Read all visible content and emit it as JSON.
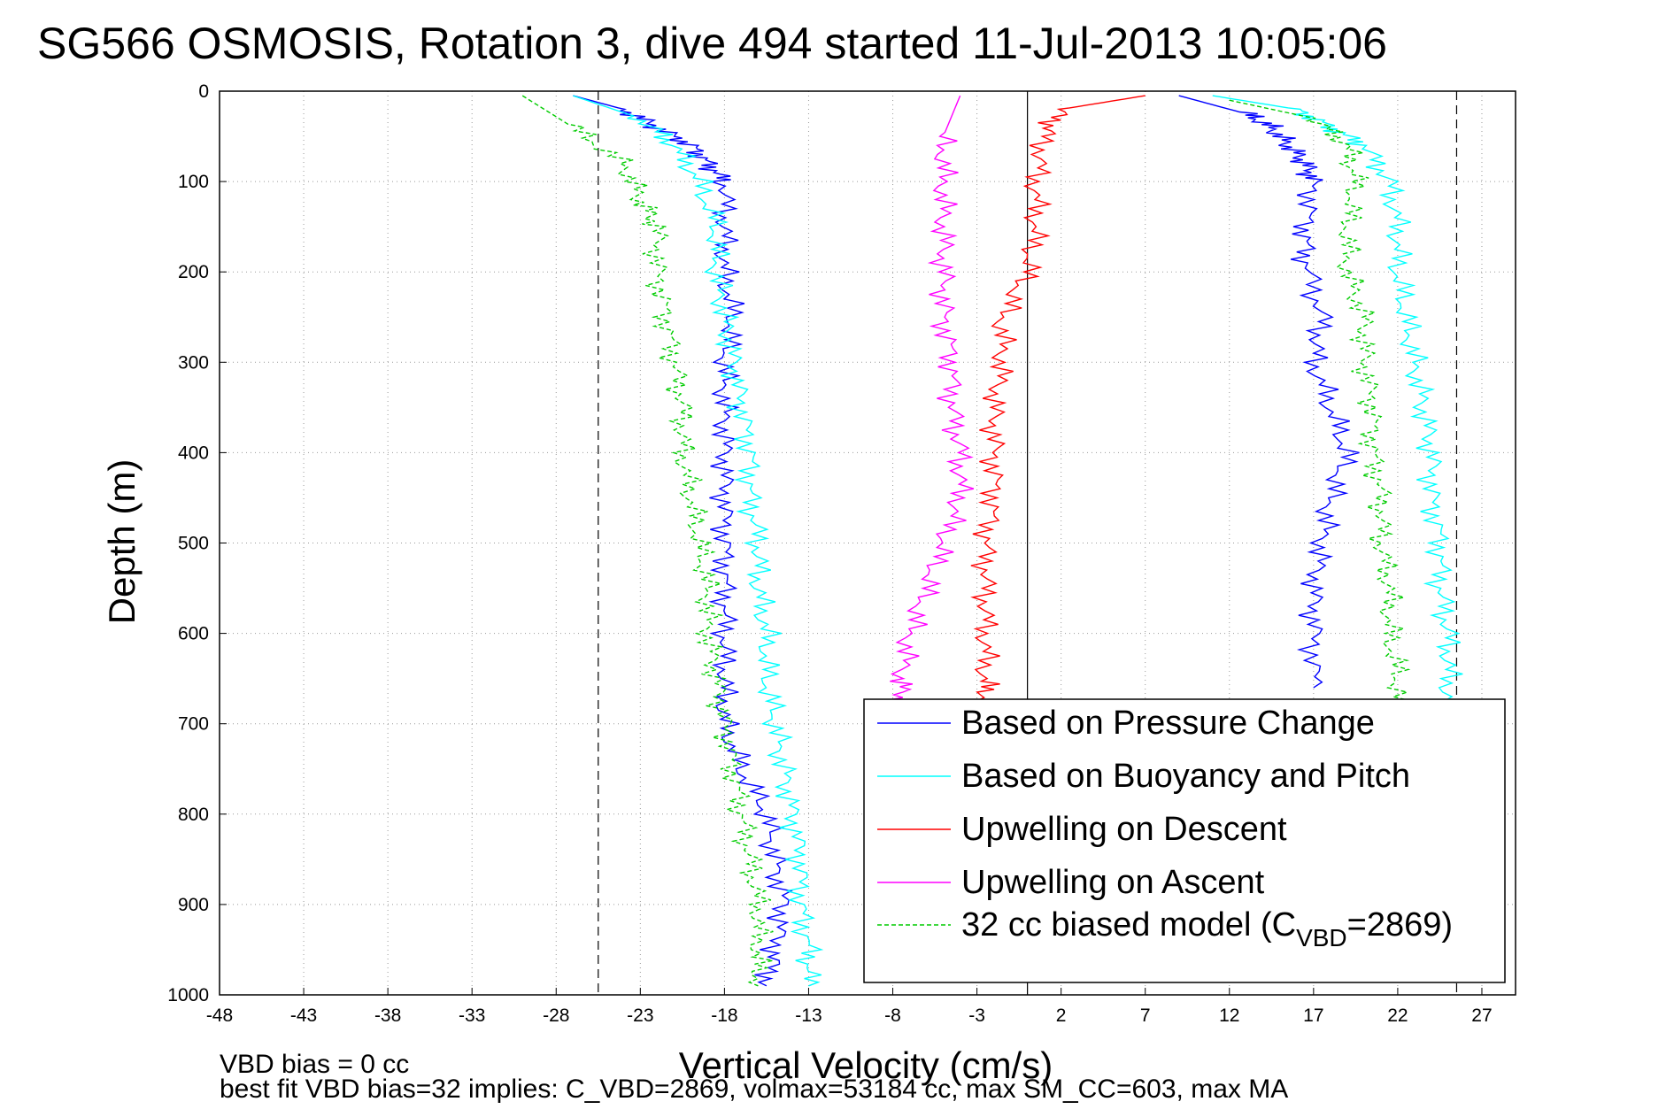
{
  "chart_data": {
    "type": "line",
    "title": "SG566 OSMOSIS, Rotation 3, dive 494 started 11-Jul-2013 10:05:06",
    "xlabel": "Vertical Velocity (cm/s)",
    "ylabel": "Depth (m)",
    "xlim": [
      -48,
      29
    ],
    "ylim": [
      1000,
      0
    ],
    "y_reversed": true,
    "grid": true,
    "x_ticks": [
      -48,
      -43,
      -38,
      -33,
      -28,
      -23,
      -18,
      -13,
      -8,
      -3,
      2,
      7,
      12,
      17,
      22,
      27
    ],
    "y_ticks": [
      0,
      100,
      200,
      300,
      400,
      500,
      600,
      700,
      800,
      900,
      1000
    ],
    "reference_lines": {
      "zero_velocity": 0,
      "descent_target": -25.5,
      "ascent_target": 25.5
    },
    "legend_position": "bottom-right",
    "series": [
      {
        "name": "Based on Pressure Change",
        "color": "#0000ff",
        "style": "solid",
        "descent": [
          [
            -27,
            5
          ],
          [
            -24,
            20
          ],
          [
            -22,
            40
          ],
          [
            -20,
            60
          ],
          [
            -19,
            80
          ],
          [
            -18,
            100
          ],
          [
            -18,
            150
          ],
          [
            -18,
            200
          ],
          [
            -17.5,
            250
          ],
          [
            -18,
            300
          ],
          [
            -18,
            350
          ],
          [
            -18,
            400
          ],
          [
            -18,
            450
          ],
          [
            -18,
            500
          ],
          [
            -18,
            550
          ],
          [
            -18,
            600
          ],
          [
            -18,
            650
          ],
          [
            -18,
            700
          ],
          [
            -17,
            750
          ],
          [
            -15.5,
            800
          ],
          [
            -15,
            850
          ],
          [
            -14.5,
            900
          ],
          [
            -15,
            950
          ],
          [
            -15.5,
            990
          ]
        ],
        "ascent": [
          [
            9,
            5
          ],
          [
            13,
            25
          ],
          [
            14.5,
            40
          ],
          [
            15.5,
            60
          ],
          [
            16.5,
            80
          ],
          [
            17,
            100
          ],
          [
            16.5,
            150
          ],
          [
            16.5,
            190
          ],
          [
            17.5,
            250
          ],
          [
            17,
            300
          ],
          [
            18,
            350
          ],
          [
            19,
            400
          ],
          [
            18,
            450
          ],
          [
            17.5,
            500
          ],
          [
            17,
            550
          ],
          [
            17,
            600
          ],
          [
            17,
            660
          ]
        ]
      },
      {
        "name": "Based on Buoyancy and Pitch",
        "color": "#00ffff",
        "style": "solid",
        "descent": [
          [
            -27,
            5
          ],
          [
            -23,
            30
          ],
          [
            -21,
            60
          ],
          [
            -19.5,
            100
          ],
          [
            -18.5,
            150
          ],
          [
            -18.5,
            200
          ],
          [
            -18,
            250
          ],
          [
            -17.5,
            300
          ],
          [
            -17,
            350
          ],
          [
            -16.5,
            400
          ],
          [
            -16.5,
            450
          ],
          [
            -16,
            500
          ],
          [
            -16,
            550
          ],
          [
            -15.5,
            600
          ],
          [
            -15.5,
            650
          ],
          [
            -15,
            700
          ],
          [
            -14.5,
            750
          ],
          [
            -14,
            800
          ],
          [
            -13.5,
            850
          ],
          [
            -13.5,
            900
          ],
          [
            -13,
            950
          ],
          [
            -13,
            990
          ]
        ],
        "ascent": [
          [
            11,
            5
          ],
          [
            16,
            20
          ],
          [
            18,
            40
          ],
          [
            20,
            60
          ],
          [
            21.5,
            100
          ],
          [
            22,
            150
          ],
          [
            22,
            200
          ],
          [
            22.5,
            250
          ],
          [
            23,
            300
          ],
          [
            23.5,
            350
          ],
          [
            24,
            400
          ],
          [
            24,
            450
          ],
          [
            24.5,
            500
          ],
          [
            24.5,
            550
          ],
          [
            25,
            600
          ],
          [
            25,
            650
          ],
          [
            25,
            700
          ],
          [
            27,
            760
          ]
        ]
      },
      {
        "name": "Upwelling on Descent",
        "color": "#ff0000",
        "style": "solid",
        "values": [
          [
            7,
            5
          ],
          [
            2,
            20
          ],
          [
            1,
            50
          ],
          [
            0.5,
            100
          ],
          [
            0.5,
            150
          ],
          [
            0,
            200
          ],
          [
            -1.5,
            250
          ],
          [
            -1.5,
            300
          ],
          [
            -2,
            350
          ],
          [
            -2,
            400
          ],
          [
            -2,
            450
          ],
          [
            -2.5,
            500
          ],
          [
            -2.5,
            550
          ],
          [
            -2.5,
            600
          ],
          [
            -2.5,
            650
          ],
          [
            -2.5,
            680
          ]
        ]
      },
      {
        "name": "Upwelling on Ascent",
        "color": "#ff00ff",
        "style": "solid",
        "values": [
          [
            -4,
            5
          ],
          [
            -5,
            50
          ],
          [
            -5,
            100
          ],
          [
            -5,
            150
          ],
          [
            -5,
            200
          ],
          [
            -5,
            250
          ],
          [
            -4.5,
            300
          ],
          [
            -4.5,
            350
          ],
          [
            -4,
            400
          ],
          [
            -4,
            450
          ],
          [
            -5,
            500
          ],
          [
            -6,
            550
          ],
          [
            -7,
            600
          ],
          [
            -7.5,
            650
          ],
          [
            -7.5,
            680
          ]
        ]
      },
      {
        "name": "32 cc biased model (C_VBD=2869)",
        "color": "#00cc00",
        "style": "dashed",
        "descent": [
          [
            -30,
            5
          ],
          [
            -27,
            40
          ],
          [
            -24,
            80
          ],
          [
            -23,
            120
          ],
          [
            -22,
            150
          ],
          [
            -22,
            200
          ],
          [
            -21.5,
            250
          ],
          [
            -21,
            300
          ],
          [
            -20.5,
            350
          ],
          [
            -20.5,
            400
          ],
          [
            -20,
            450
          ],
          [
            -19.5,
            500
          ],
          [
            -19,
            550
          ],
          [
            -19,
            600
          ],
          [
            -18.5,
            650
          ],
          [
            -18,
            700
          ],
          [
            -17.5,
            750
          ],
          [
            -17,
            800
          ],
          [
            -16.5,
            850
          ],
          [
            -16,
            900
          ],
          [
            -16,
            950
          ],
          [
            -16,
            990
          ]
        ],
        "ascent": [
          [
            12,
            10
          ],
          [
            17,
            30
          ],
          [
            19,
            60
          ],
          [
            19.5,
            100
          ],
          [
            19,
            150
          ],
          [
            19,
            200
          ],
          [
            20,
            250
          ],
          [
            20,
            300
          ],
          [
            20.5,
            350
          ],
          [
            20.5,
            400
          ],
          [
            21,
            450
          ],
          [
            21,
            500
          ],
          [
            21.5,
            550
          ],
          [
            21.5,
            600
          ],
          [
            22,
            650
          ],
          [
            22,
            700
          ]
        ]
      }
    ],
    "legend": {
      "entries": [
        "Based on Pressure Change",
        "Based on Buoyancy and Pitch",
        "Upwelling on Descent",
        "Upwelling on Ascent"
      ],
      "model_entry": {
        "prefix": "32 cc biased model (C",
        "subscript": "VBD",
        "suffix": "=2869)"
      }
    },
    "annotations": [
      "VBD bias = 0 cc",
      "best fit VBD bias=32 implies: C_VBD=2869, volmax=53184 cc, max SM_CC=603, max MA"
    ]
  }
}
